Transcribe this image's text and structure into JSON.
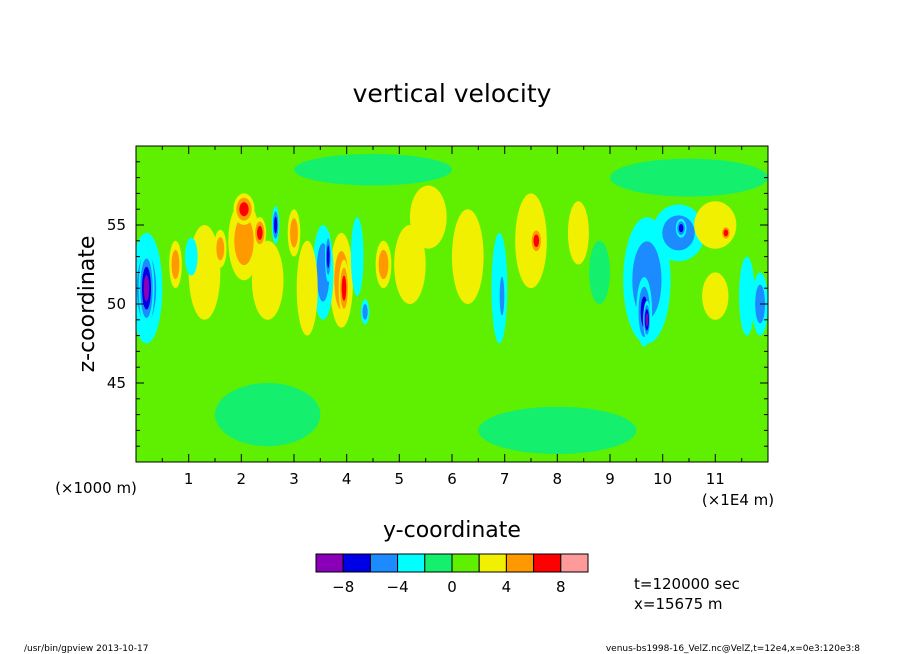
{
  "chart_data": {
    "type": "heatmap",
    "title": "vertical velocity",
    "xlabel": "y-coordinate",
    "ylabel": "z-coordinate",
    "x_unit_left": "(×1000 m)",
    "x_unit_right": "(×1E4 m)",
    "xlim": [
      0,
      12
    ],
    "ylim": [
      40,
      60
    ],
    "x_ticks": [
      "1",
      "2",
      "3",
      "4",
      "5",
      "6",
      "7",
      "8",
      "9",
      "10",
      "11"
    ],
    "y_ticks": [
      "45",
      "50",
      "55"
    ],
    "levels": [
      -10,
      -8,
      -6,
      -4,
      -2,
      0,
      2,
      4,
      6,
      8,
      10
    ],
    "colorbar_labels": [
      "-8",
      "-4",
      "0",
      "4",
      "8"
    ],
    "colors": [
      "#8a00b8",
      "#0000e6",
      "#1b8bff",
      "#00ffff",
      "#14f06e",
      "#5ef000",
      "#f0f000",
      "#ff9900",
      "#ff0000",
      "#ff9a9a"
    ],
    "background_color": "#5ef000",
    "features": [
      {
        "y": 0.2,
        "z": 51.0,
        "ry": 0.15,
        "rz": 2.4,
        "value": -8.5
      },
      {
        "y": 0.2,
        "z": 51.0,
        "ry": 0.3,
        "rz": 3.5,
        "value": -4.5
      },
      {
        "y": 0.75,
        "z": 52.5,
        "ry": 0.12,
        "rz": 1.5,
        "value": 4.5
      },
      {
        "y": 1.05,
        "z": 53.0,
        "ry": 0.12,
        "rz": 1.2,
        "value": -3.5
      },
      {
        "y": 1.3,
        "z": 52.0,
        "ry": 0.3,
        "rz": 3.0,
        "value": 2.5
      },
      {
        "y": 1.6,
        "z": 53.5,
        "ry": 0.12,
        "rz": 1.2,
        "value": 5.0
      },
      {
        "y": 2.05,
        "z": 54.0,
        "ry": 0.3,
        "rz": 2.5,
        "value": 5.0
      },
      {
        "y": 2.05,
        "z": 56.0,
        "ry": 0.2,
        "rz": 1.0,
        "value": 6.5
      },
      {
        "y": 2.35,
        "z": 54.5,
        "ry": 0.12,
        "rz": 1.0,
        "value": 6.5
      },
      {
        "y": 2.5,
        "z": 51.5,
        "ry": 0.3,
        "rz": 2.5,
        "value": 3.0
      },
      {
        "y": 2.65,
        "z": 55.0,
        "ry": 0.07,
        "rz": 1.2,
        "value": -7.0
      },
      {
        "y": 3.0,
        "z": 54.5,
        "ry": 0.12,
        "rz": 1.5,
        "value": 5.0
      },
      {
        "y": 3.25,
        "z": 51.0,
        "ry": 0.2,
        "rz": 3.0,
        "value": 2.5
      },
      {
        "y": 3.55,
        "z": 52.0,
        "ry": 0.2,
        "rz": 3.0,
        "value": -4.5
      },
      {
        "y": 3.65,
        "z": 53.0,
        "ry": 0.06,
        "rz": 1.6,
        "value": -7.5
      },
      {
        "y": 3.9,
        "z": 51.5,
        "ry": 0.22,
        "rz": 3.0,
        "value": 4.5
      },
      {
        "y": 3.95,
        "z": 51.0,
        "ry": 0.1,
        "rz": 1.8,
        "value": 6.5
      },
      {
        "y": 4.2,
        "z": 53.0,
        "ry": 0.12,
        "rz": 2.5,
        "value": -2.5
      },
      {
        "y": 4.35,
        "z": 49.5,
        "ry": 0.08,
        "rz": 0.8,
        "value": -4.5
      },
      {
        "y": 4.7,
        "z": 52.5,
        "ry": 0.15,
        "rz": 1.5,
        "value": 5.0
      },
      {
        "y": 5.2,
        "z": 52.5,
        "ry": 0.3,
        "rz": 2.5,
        "value": 3.0
      },
      {
        "y": 5.55,
        "z": 55.5,
        "ry": 0.35,
        "rz": 2.0,
        "value": 3.5
      },
      {
        "y": 6.3,
        "z": 53.0,
        "ry": 0.3,
        "rz": 3.0,
        "value": 3.0
      },
      {
        "y": 6.9,
        "z": 51.0,
        "ry": 0.15,
        "rz": 3.5,
        "value": -3.5
      },
      {
        "y": 6.95,
        "z": 50.5,
        "ry": 0.07,
        "rz": 2.0,
        "value": -5.0
      },
      {
        "y": 7.5,
        "z": 54.0,
        "ry": 0.3,
        "rz": 3.0,
        "value": 3.5
      },
      {
        "y": 7.6,
        "z": 54.0,
        "ry": 0.12,
        "rz": 0.9,
        "value": 6.5
      },
      {
        "y": 8.4,
        "z": 54.5,
        "ry": 0.2,
        "rz": 2.0,
        "value": 3.0
      },
      {
        "y": 8.8,
        "z": 52.0,
        "ry": 0.2,
        "rz": 2.0,
        "value": -1.5
      },
      {
        "y": 9.7,
        "z": 51.5,
        "ry": 0.45,
        "rz": 4.0,
        "value": -4.5
      },
      {
        "y": 9.65,
        "z": 49.5,
        "ry": 0.15,
        "rz": 2.2,
        "value": -7.5
      },
      {
        "y": 9.7,
        "z": 49.0,
        "ry": 0.07,
        "rz": 1.2,
        "value": -9.0
      },
      {
        "y": 10.3,
        "z": 54.5,
        "ry": 0.5,
        "rz": 1.8,
        "value": -4.5
      },
      {
        "y": 10.35,
        "z": 54.8,
        "ry": 0.1,
        "rz": 0.6,
        "value": -7.5
      },
      {
        "y": 11.0,
        "z": 55.0,
        "ry": 0.4,
        "rz": 1.5,
        "value": 3.5
      },
      {
        "y": 11.2,
        "z": 54.5,
        "ry": 0.1,
        "rz": 0.5,
        "value": 6.5
      },
      {
        "y": 11.0,
        "z": 50.5,
        "ry": 0.25,
        "rz": 1.5,
        "value": 3.0
      },
      {
        "y": 11.6,
        "z": 50.5,
        "ry": 0.15,
        "rz": 2.5,
        "value": -3.5
      },
      {
        "y": 11.85,
        "z": 50.0,
        "ry": 0.15,
        "rz": 2.0,
        "value": -4.0
      },
      {
        "y": 6.5,
        "z": 47.0,
        "ry": 2.5,
        "rz": 1.5,
        "value": 1.0
      },
      {
        "y": 2.5,
        "z": 43.0,
        "ry": 1.0,
        "rz": 2.0,
        "value": -0.6
      },
      {
        "y": 8.0,
        "z": 42.0,
        "ry": 1.5,
        "rz": 1.5,
        "value": -0.6
      },
      {
        "y": 4.5,
        "z": 58.5,
        "ry": 1.5,
        "rz": 1.0,
        "value": -0.6
      },
      {
        "y": 10.5,
        "z": 58.0,
        "ry": 1.5,
        "rz": 1.2,
        "value": -0.6
      },
      {
        "y": 6.0,
        "z": 41.5,
        "ry": 0.8,
        "rz": 1.0,
        "value": 1.2
      }
    ]
  },
  "annotations": {
    "time": "t=120000 sec",
    "position": "x=15675 m"
  },
  "footer": {
    "left": "/usr/bin/gpview  2013-10-17",
    "right": "venus-bs1998-16_VelZ.nc@VelZ,t=12e4,x=0e3:120e3:8"
  }
}
